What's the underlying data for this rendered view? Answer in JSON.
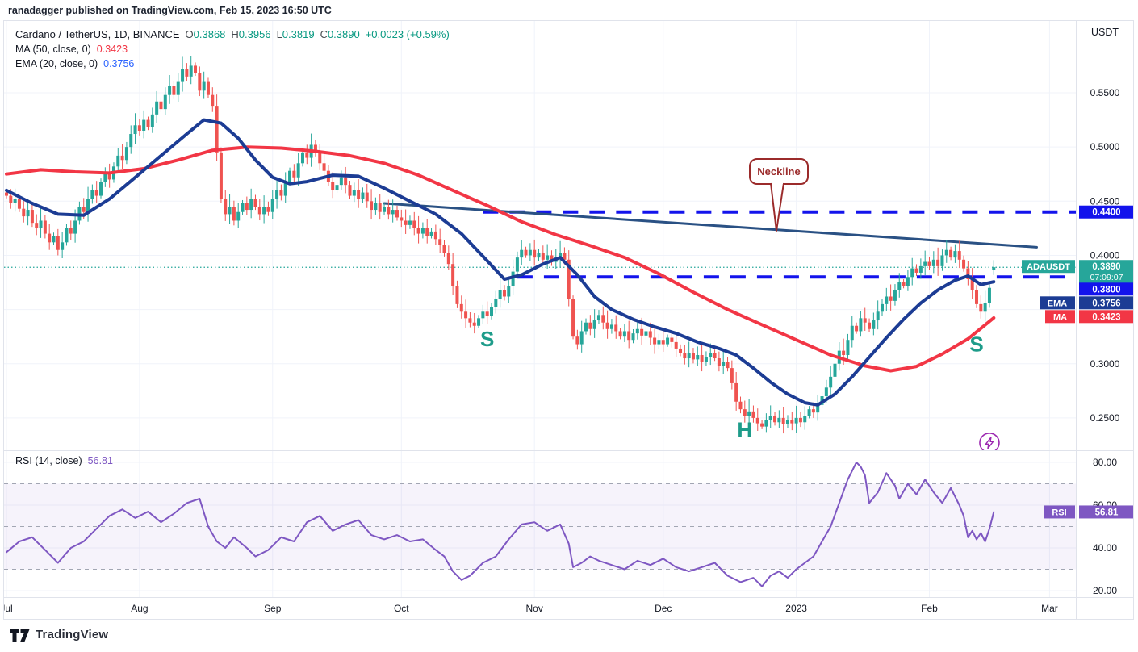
{
  "header": {
    "published_line": "ranadagger published on TradingView.com, Feb 15, 2023 16:50 UTC"
  },
  "footer": {
    "brand": "TradingView"
  },
  "legend": {
    "symbol_line": "Cardano / TetherUS, 1D, BINANCE",
    "ohlc": [
      {
        "k": "O",
        "v": "0.3868"
      },
      {
        "k": "H",
        "v": "0.3956"
      },
      {
        "k": "L",
        "v": "0.3819"
      },
      {
        "k": "C",
        "v": "0.3890"
      }
    ],
    "change": "+0.0023 (+0.59%)",
    "ma_label": "MA (50, close, 0)",
    "ma_value": "0.3423",
    "ema_label": "EMA (20, close, 0)",
    "ema_value": "0.3756",
    "rsi_label": "RSI (14, close)",
    "rsi_value": "56.81"
  },
  "colors": {
    "up": "#26a69a",
    "down": "#ef5350",
    "ma": "#f23645",
    "ema": "#1c3c94",
    "neckline": "#2a5184",
    "level_blue": "#1313ec",
    "rsi": "#7e57c2",
    "rsi_band_fill": "rgba(126,87,194,0.07)",
    "guide_gray": "#a2a6b3",
    "grid": "#f0f3fa",
    "axis_text": "#131722",
    "separator": "#e0e3eb",
    "price_line_teal": "#26a69a",
    "annotation_red": "#9b2b2b",
    "lightning_purple": "#9c27b0",
    "pattern_teal": "#1e9c8a",
    "badge_text": "#ffffff"
  },
  "axis": {
    "currency": "USDT",
    "price_ticks": [
      {
        "label": "0.5500",
        "price": 0.55
      },
      {
        "label": "0.5000",
        "price": 0.5
      },
      {
        "label": "0.4500",
        "price": 0.45
      },
      {
        "label": "0.4000",
        "price": 0.4
      },
      {
        "label": "0.3000",
        "price": 0.3
      },
      {
        "label": "0.2500",
        "price": 0.25
      }
    ],
    "grid_prices": [
      0.55,
      0.5,
      0.45,
      0.4,
      0.35,
      0.3,
      0.25
    ],
    "rsi_ticks": [
      {
        "label": "80.00",
        "value": 80
      },
      {
        "label": "60.00",
        "value": 60
      },
      {
        "label": "40.00",
        "value": 40
      },
      {
        "label": "20.00",
        "value": 20
      }
    ],
    "time_ticks": [
      {
        "label": "Jul",
        "day": 0
      },
      {
        "label": "Aug",
        "day": 31
      },
      {
        "label": "Sep",
        "day": 62
      },
      {
        "label": "Oct",
        "day": 92
      },
      {
        "label": "Nov",
        "day": 123
      },
      {
        "label": "Dec",
        "day": 153
      },
      {
        "label": "2023",
        "day": 184
      },
      {
        "label": "Feb",
        "day": 215
      },
      {
        "label": "Mar",
        "day": 243
      }
    ],
    "badges": {
      "level_44": {
        "text": "0.4400",
        "price": 0.44
      },
      "price": {
        "tag": "ADAUSDT",
        "value": "0.3890",
        "countdown": "07:09:07",
        "price": 0.389
      },
      "level_38": {
        "text": "0.3800",
        "price": 0.38
      },
      "ema": {
        "tag": "EMA",
        "text": "0.3756"
      },
      "ma": {
        "tag": "MA",
        "text": "0.3423"
      },
      "rsi": {
        "tag": "RSI",
        "text": "56.81",
        "value": 56.81
      }
    }
  },
  "chart_data": {
    "type": "candlestick",
    "title": "Cardano / TetherUS, 1D, BINANCE",
    "symbol": "ADAUSDT",
    "interval": "1D",
    "ylabel": "USDT",
    "price_range_shown": [
      0.22,
      0.62
    ],
    "rsi_range_shown": [
      15,
      85
    ],
    "grid": true,
    "x_start_day_label": "Jul 2022",
    "x_end_day_label": "Mar 2023",
    "first_open": 0.458,
    "closes": [
      0.455,
      0.448,
      0.452,
      0.443,
      0.436,
      0.442,
      0.43,
      0.425,
      0.432,
      0.42,
      0.412,
      0.418,
      0.405,
      0.412,
      0.425,
      0.42,
      0.432,
      0.445,
      0.44,
      0.452,
      0.46,
      0.455,
      0.468,
      0.475,
      0.47,
      0.482,
      0.492,
      0.488,
      0.5,
      0.512,
      0.52,
      0.515,
      0.525,
      0.518,
      0.53,
      0.542,
      0.535,
      0.548,
      0.556,
      0.548,
      0.56,
      0.572,
      0.565,
      0.575,
      0.568,
      0.552,
      0.56,
      0.548,
      0.538,
      0.495,
      0.452,
      0.438,
      0.445,
      0.432,
      0.44,
      0.448,
      0.442,
      0.452,
      0.445,
      0.438,
      0.445,
      0.44,
      0.452,
      0.46,
      0.455,
      0.468,
      0.478,
      0.472,
      0.485,
      0.495,
      0.49,
      0.502,
      0.495,
      0.485,
      0.478,
      0.468,
      0.46,
      0.465,
      0.472,
      0.465,
      0.455,
      0.46,
      0.452,
      0.458,
      0.45,
      0.442,
      0.448,
      0.44,
      0.445,
      0.438,
      0.442,
      0.435,
      0.432,
      0.428,
      0.432,
      0.425,
      0.42,
      0.425,
      0.418,
      0.422,
      0.415,
      0.41,
      0.402,
      0.392,
      0.372,
      0.355,
      0.348,
      0.342,
      0.338,
      0.335,
      0.342,
      0.348,
      0.344,
      0.352,
      0.36,
      0.368,
      0.362,
      0.372,
      0.385,
      0.398,
      0.405,
      0.4,
      0.405,
      0.398,
      0.402,
      0.396,
      0.4,
      0.394,
      0.398,
      0.402,
      0.396,
      0.36,
      0.325,
      0.318,
      0.33,
      0.338,
      0.332,
      0.34,
      0.345,
      0.338,
      0.332,
      0.336,
      0.33,
      0.325,
      0.33,
      0.322,
      0.328,
      0.332,
      0.326,
      0.33,
      0.324,
      0.318,
      0.322,
      0.318,
      0.324,
      0.32,
      0.314,
      0.31,
      0.305,
      0.31,
      0.304,
      0.308,
      0.302,
      0.306,
      0.31,
      0.305,
      0.298,
      0.302,
      0.296,
      0.282,
      0.265,
      0.258,
      0.252,
      0.256,
      0.25,
      0.245,
      0.242,
      0.248,
      0.252,
      0.246,
      0.25,
      0.244,
      0.248,
      0.245,
      0.25,
      0.246,
      0.252,
      0.258,
      0.255,
      0.262,
      0.27,
      0.278,
      0.288,
      0.3,
      0.312,
      0.308,
      0.322,
      0.335,
      0.33,
      0.342,
      0.338,
      0.332,
      0.34,
      0.348,
      0.355,
      0.362,
      0.358,
      0.368,
      0.375,
      0.372,
      0.38,
      0.388,
      0.384,
      0.39,
      0.394,
      0.39,
      0.396,
      0.39,
      0.4,
      0.405,
      0.398,
      0.404,
      0.396,
      0.388,
      0.378,
      0.368,
      0.355,
      0.348,
      0.356,
      0.37,
      0.389
    ],
    "last_candle_ohlc": {
      "open": 0.3868,
      "high": 0.3956,
      "low": 0.3819,
      "close": 0.389
    },
    "series": [
      {
        "name": "MA (50, close)",
        "current": 0.3423,
        "anchors": [
          [
            0,
            0.475
          ],
          [
            8,
            0.479
          ],
          [
            16,
            0.477
          ],
          [
            24,
            0.476
          ],
          [
            32,
            0.48
          ],
          [
            40,
            0.488
          ],
          [
            48,
            0.497
          ],
          [
            56,
            0.5
          ],
          [
            64,
            0.499
          ],
          [
            72,
            0.496
          ],
          [
            80,
            0.492
          ],
          [
            88,
            0.485
          ],
          [
            96,
            0.474
          ],
          [
            104,
            0.46
          ],
          [
            112,
            0.446
          ],
          [
            120,
            0.431
          ],
          [
            128,
            0.419
          ],
          [
            136,
            0.409
          ],
          [
            144,
            0.398
          ],
          [
            152,
            0.383
          ],
          [
            160,
            0.366
          ],
          [
            168,
            0.35
          ],
          [
            176,
            0.336
          ],
          [
            184,
            0.322
          ],
          [
            192,
            0.308
          ],
          [
            200,
            0.298
          ],
          [
            206,
            0.2935
          ],
          [
            212,
            0.2975
          ],
          [
            218,
            0.309
          ],
          [
            224,
            0.323
          ],
          [
            230,
            0.3423
          ]
        ]
      },
      {
        "name": "EMA (20, close)",
        "current": 0.3756,
        "anchors": [
          [
            0,
            0.46
          ],
          [
            6,
            0.448
          ],
          [
            12,
            0.438
          ],
          [
            18,
            0.437
          ],
          [
            24,
            0.452
          ],
          [
            30,
            0.472
          ],
          [
            36,
            0.492
          ],
          [
            42,
            0.512
          ],
          [
            46,
            0.525
          ],
          [
            50,
            0.522
          ],
          [
            54,
            0.508
          ],
          [
            58,
            0.488
          ],
          [
            62,
            0.472
          ],
          [
            66,
            0.466
          ],
          [
            70,
            0.468
          ],
          [
            76,
            0.474
          ],
          [
            82,
            0.473
          ],
          [
            88,
            0.462
          ],
          [
            94,
            0.45
          ],
          [
            100,
            0.438
          ],
          [
            106,
            0.42
          ],
          [
            112,
            0.395
          ],
          [
            116,
            0.378
          ],
          [
            120,
            0.382
          ],
          [
            125,
            0.392
          ],
          [
            129,
            0.398
          ],
          [
            133,
            0.382
          ],
          [
            137,
            0.362
          ],
          [
            141,
            0.35
          ],
          [
            146,
            0.341
          ],
          [
            151,
            0.334
          ],
          [
            156,
            0.328
          ],
          [
            161,
            0.32
          ],
          [
            166,
            0.314
          ],
          [
            170,
            0.308
          ],
          [
            174,
            0.296
          ],
          [
            178,
            0.283
          ],
          [
            182,
            0.272
          ],
          [
            186,
            0.264
          ],
          [
            189,
            0.262
          ],
          [
            193,
            0.272
          ],
          [
            197,
            0.288
          ],
          [
            201,
            0.306
          ],
          [
            205,
            0.324
          ],
          [
            209,
            0.341
          ],
          [
            213,
            0.356
          ],
          [
            217,
            0.368
          ],
          [
            221,
            0.377
          ],
          [
            224,
            0.381
          ],
          [
            227,
            0.373
          ],
          [
            230,
            0.3756
          ]
        ]
      }
    ],
    "rsi": {
      "name": "RSI (14, close)",
      "current": 56.81,
      "guides": [
        70,
        50,
        30
      ],
      "anchors": [
        [
          0,
          38
        ],
        [
          3,
          43
        ],
        [
          6,
          45
        ],
        [
          9,
          39
        ],
        [
          12,
          33
        ],
        [
          15,
          40
        ],
        [
          18,
          43
        ],
        [
          21,
          49
        ],
        [
          24,
          55
        ],
        [
          27,
          58
        ],
        [
          30,
          54
        ],
        [
          33,
          57
        ],
        [
          36,
          52
        ],
        [
          39,
          56
        ],
        [
          42,
          61
        ],
        [
          45,
          63
        ],
        [
          47,
          50
        ],
        [
          49,
          43
        ],
        [
          51,
          40
        ],
        [
          53,
          45
        ],
        [
          56,
          40
        ],
        [
          58,
          36
        ],
        [
          61,
          39
        ],
        [
          64,
          45
        ],
        [
          67,
          43
        ],
        [
          70,
          52
        ],
        [
          73,
          55
        ],
        [
          76,
          48
        ],
        [
          79,
          51
        ],
        [
          82,
          53
        ],
        [
          85,
          46
        ],
        [
          88,
          44
        ],
        [
          91,
          46
        ],
        [
          94,
          43
        ],
        [
          97,
          44
        ],
        [
          100,
          39
        ],
        [
          102,
          36
        ],
        [
          104,
          29
        ],
        [
          106,
          25
        ],
        [
          108,
          27
        ],
        [
          111,
          33
        ],
        [
          114,
          36
        ],
        [
          117,
          44
        ],
        [
          120,
          51
        ],
        [
          123,
          52
        ],
        [
          126,
          48
        ],
        [
          129,
          51
        ],
        [
          131,
          42
        ],
        [
          132,
          31
        ],
        [
          134,
          33
        ],
        [
          136,
          36
        ],
        [
          138,
          34
        ],
        [
          141,
          32
        ],
        [
          144,
          30
        ],
        [
          147,
          34
        ],
        [
          150,
          32
        ],
        [
          153,
          35
        ],
        [
          156,
          31
        ],
        [
          159,
          29
        ],
        [
          162,
          31
        ],
        [
          165,
          33
        ],
        [
          168,
          27
        ],
        [
          171,
          24
        ],
        [
          174,
          26
        ],
        [
          176,
          22
        ],
        [
          178,
          27
        ],
        [
          180,
          29
        ],
        [
          182,
          26
        ],
        [
          184,
          30
        ],
        [
          186,
          33
        ],
        [
          188,
          36
        ],
        [
          190,
          43
        ],
        [
          192,
          50
        ],
        [
          194,
          61
        ],
        [
          196,
          72
        ],
        [
          198,
          80
        ],
        [
          199,
          78
        ],
        [
          200,
          74
        ],
        [
          201,
          61
        ],
        [
          203,
          66
        ],
        [
          205,
          75
        ],
        [
          207,
          69
        ],
        [
          208,
          63
        ],
        [
          210,
          70
        ],
        [
          212,
          65
        ],
        [
          214,
          72
        ],
        [
          216,
          66
        ],
        [
          218,
          61
        ],
        [
          220,
          68
        ],
        [
          221,
          64
        ],
        [
          222,
          60
        ],
        [
          223,
          55
        ],
        [
          224,
          45
        ],
        [
          225,
          48
        ],
        [
          226,
          44
        ],
        [
          227,
          47
        ],
        [
          228,
          43
        ],
        [
          229,
          49
        ],
        [
          230,
          56.81
        ]
      ]
    },
    "levels": [
      {
        "price": 0.44,
        "from_day": 111,
        "style": "dashed",
        "label": "0.4400"
      },
      {
        "price": 0.38,
        "from_day": 119,
        "style": "dashed",
        "label": "0.3800"
      }
    ],
    "current_price_line": {
      "price": 0.389,
      "style": "dotted"
    },
    "neckline": {
      "label": "Neckline",
      "from": [
        88,
        0.448
      ],
      "to": [
        240,
        0.4075
      ]
    },
    "pattern_labels": [
      {
        "text": "S",
        "day": 112,
        "price": 0.323
      },
      {
        "text": "H",
        "day": 172,
        "price": 0.239
      },
      {
        "text": "S",
        "day": 226,
        "price": 0.318
      }
    ],
    "lightning_marker": {
      "day": 229,
      "price": 0.227
    }
  }
}
